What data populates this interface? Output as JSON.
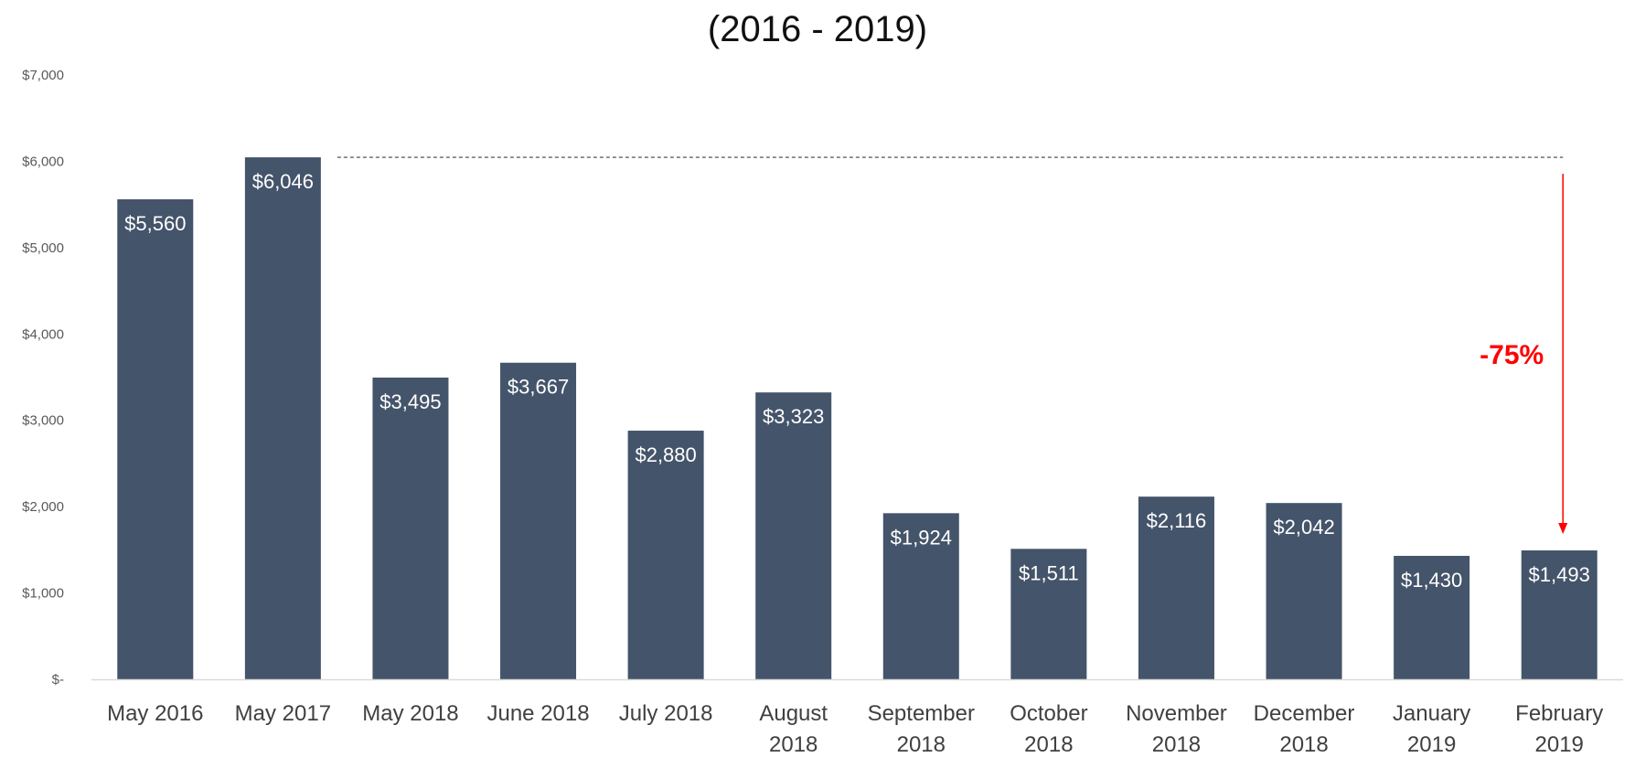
{
  "chart_data": {
    "type": "bar",
    "title": "(2016 - 2019)",
    "xlabel": "",
    "ylabel": "",
    "categories": [
      [
        "May 2016"
      ],
      [
        "May 2017"
      ],
      [
        "May 2018"
      ],
      [
        "June 2018"
      ],
      [
        "July 2018"
      ],
      [
        "August",
        "2018"
      ],
      [
        "September",
        "2018"
      ],
      [
        "October",
        "2018"
      ],
      [
        "November",
        "2018"
      ],
      [
        "December",
        "2018"
      ],
      [
        "January",
        "2019"
      ],
      [
        "February",
        "2019"
      ]
    ],
    "values": [
      5560,
      6046,
      3495,
      3667,
      2880,
      3323,
      1924,
      1511,
      2116,
      2042,
      1430,
      1493
    ],
    "data_labels": [
      "$5,560",
      "$6,046",
      "$3,495",
      "$3,667",
      "$2,880",
      "$3,323",
      "$1,924",
      "$1,511",
      "$2,116",
      "$2,042",
      "$1,430",
      "$1,493"
    ],
    "ylim": [
      0,
      7000
    ],
    "yticks": [
      0,
      1000,
      2000,
      3000,
      4000,
      5000,
      6000,
      7000
    ],
    "ytick_labels": [
      "$-",
      "$1,000",
      "$2,000",
      "$3,000",
      "$4,000",
      "$5,000",
      "$6,000",
      "$7,000"
    ],
    "grid": false,
    "bar_color": "#44546A",
    "annotation": {
      "text": "-75%",
      "color": "#FF0000",
      "reference_value": 6046,
      "target_value": 1493,
      "from_category": 1,
      "to_category": 11
    }
  }
}
